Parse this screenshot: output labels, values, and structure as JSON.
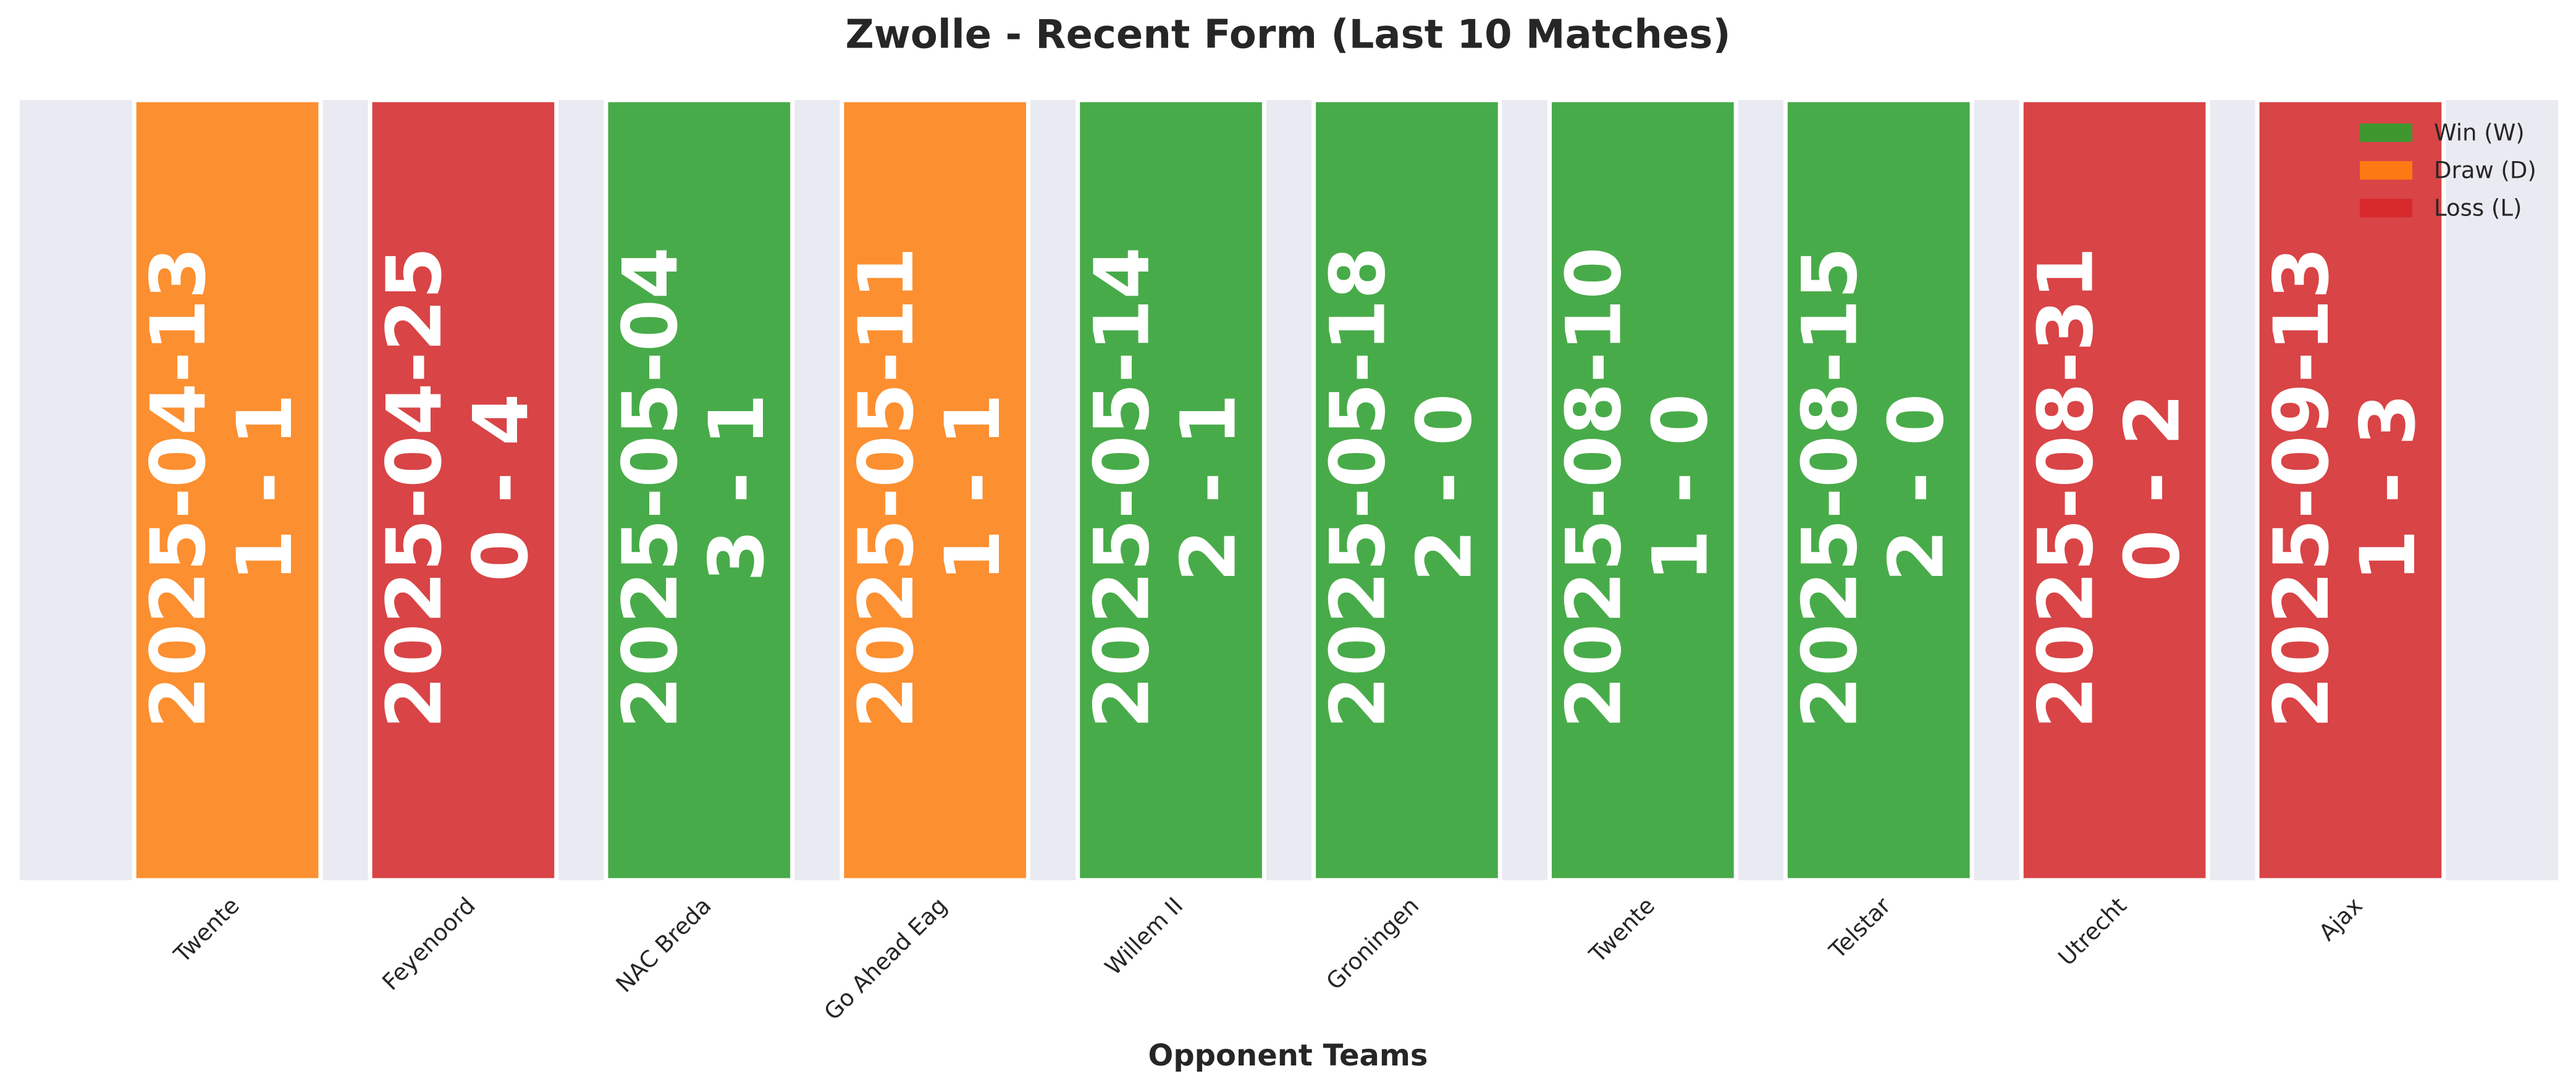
{
  "chart_data": {
    "type": "bar",
    "title": "Zwolle - Recent Form (Last 10 Matches)",
    "xlabel": "Opponent Teams",
    "categories": [
      "Twente",
      "Feyenoord",
      "NAC Breda",
      "Go Ahead Eag",
      "Willem II",
      "Groningen",
      "Twente",
      "Telstar",
      "Utrecht",
      "Ajax"
    ],
    "dates": [
      "2025-04-13",
      "2025-04-25",
      "2025-05-04",
      "2025-05-11",
      "2025-05-14",
      "2025-05-18",
      "2025-08-10",
      "2025-08-15",
      "2025-08-31",
      "2025-09-13"
    ],
    "scores": [
      "1 - 1",
      "0 - 4",
      "3 - 1",
      "1 - 1",
      "2 - 1",
      "2 - 0",
      "1 - 0",
      "2 - 0",
      "0 - 2",
      "1 - 3"
    ],
    "colors": [
      "#ff7f0e",
      "#d62728",
      "#2ca02c",
      "#ff7f0e",
      "#2ca02c",
      "#2ca02c",
      "#2ca02c",
      "#2ca02c",
      "#d62728",
      "#d62728"
    ],
    "legend": [
      {
        "name": "Win (W)",
        "color": "#2ca02c"
      },
      {
        "name": "Draw (D)",
        "color": "#ff7f0e"
      },
      {
        "name": "Loss (L)",
        "color": "#d62728"
      }
    ],
    "legend_position": "upper right"
  }
}
